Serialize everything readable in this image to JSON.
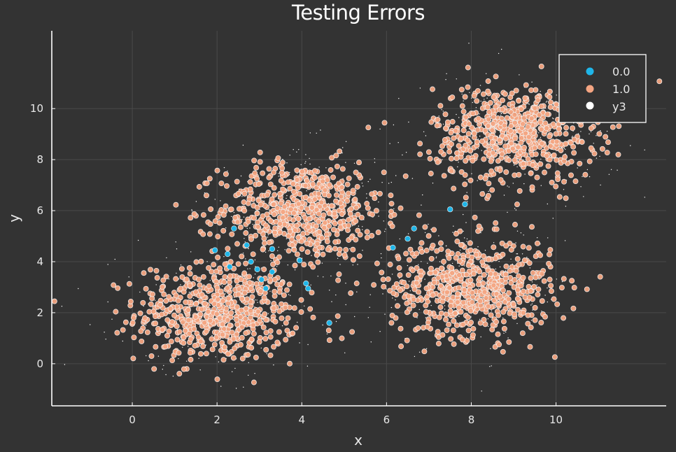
{
  "chart_data": {
    "type": "scatter",
    "title": "Testing Errors",
    "xlabel": "x",
    "ylabel": "y",
    "xlim": [
      -1.9,
      12.6
    ],
    "ylim": [
      -1.65,
      13.05
    ],
    "xticks": [
      0,
      2,
      4,
      6,
      8,
      10
    ],
    "yticks": [
      0,
      2,
      4,
      6,
      8,
      10
    ],
    "grid": true,
    "legend_position": "top-right",
    "colors": {
      "background": "#333333",
      "series_0": "#1fb5e8",
      "series_1": "#f4a582",
      "series_y3": "#ffffff",
      "marker_edge": "#f2f2f2",
      "axis": "#ffffff",
      "grid": "#4a4a4a"
    },
    "clusters": [
      {
        "center": [
          2,
          2
        ],
        "spread": 0.95,
        "count": 600
      },
      {
        "center": [
          4,
          6
        ],
        "spread": 0.95,
        "count": 600
      },
      {
        "center": [
          8,
          3
        ],
        "spread": 0.95,
        "count": 600
      },
      {
        "center": [
          9,
          9
        ],
        "spread": 0.95,
        "count": 600
      }
    ],
    "series": [
      {
        "name": "0.0",
        "color": "#1fb5e8",
        "points": [
          [
            2.4,
            5.3
          ],
          [
            1.95,
            4.45
          ],
          [
            2.25,
            4.3
          ],
          [
            2.7,
            4.65
          ],
          [
            2.3,
            3.8
          ],
          [
            2.8,
            4.0
          ],
          [
            2.95,
            3.7
          ],
          [
            3.3,
            3.6
          ],
          [
            3.05,
            3.3
          ],
          [
            3.15,
            2.95
          ],
          [
            3.3,
            4.5
          ],
          [
            3.95,
            4.05
          ],
          [
            4.1,
            3.15
          ],
          [
            4.15,
            2.95
          ],
          [
            4.65,
            1.6
          ],
          [
            6.15,
            4.55
          ],
          [
            6.5,
            4.9
          ],
          [
            6.65,
            5.3
          ],
          [
            7.5,
            6.05
          ],
          [
            7.85,
            6.25
          ]
        ]
      },
      {
        "name": "1.0",
        "color": "#f4a582",
        "generated_from_clusters": true
      },
      {
        "name": "y3",
        "color": "#ffffff",
        "generated_from_clusters": true
      }
    ]
  }
}
